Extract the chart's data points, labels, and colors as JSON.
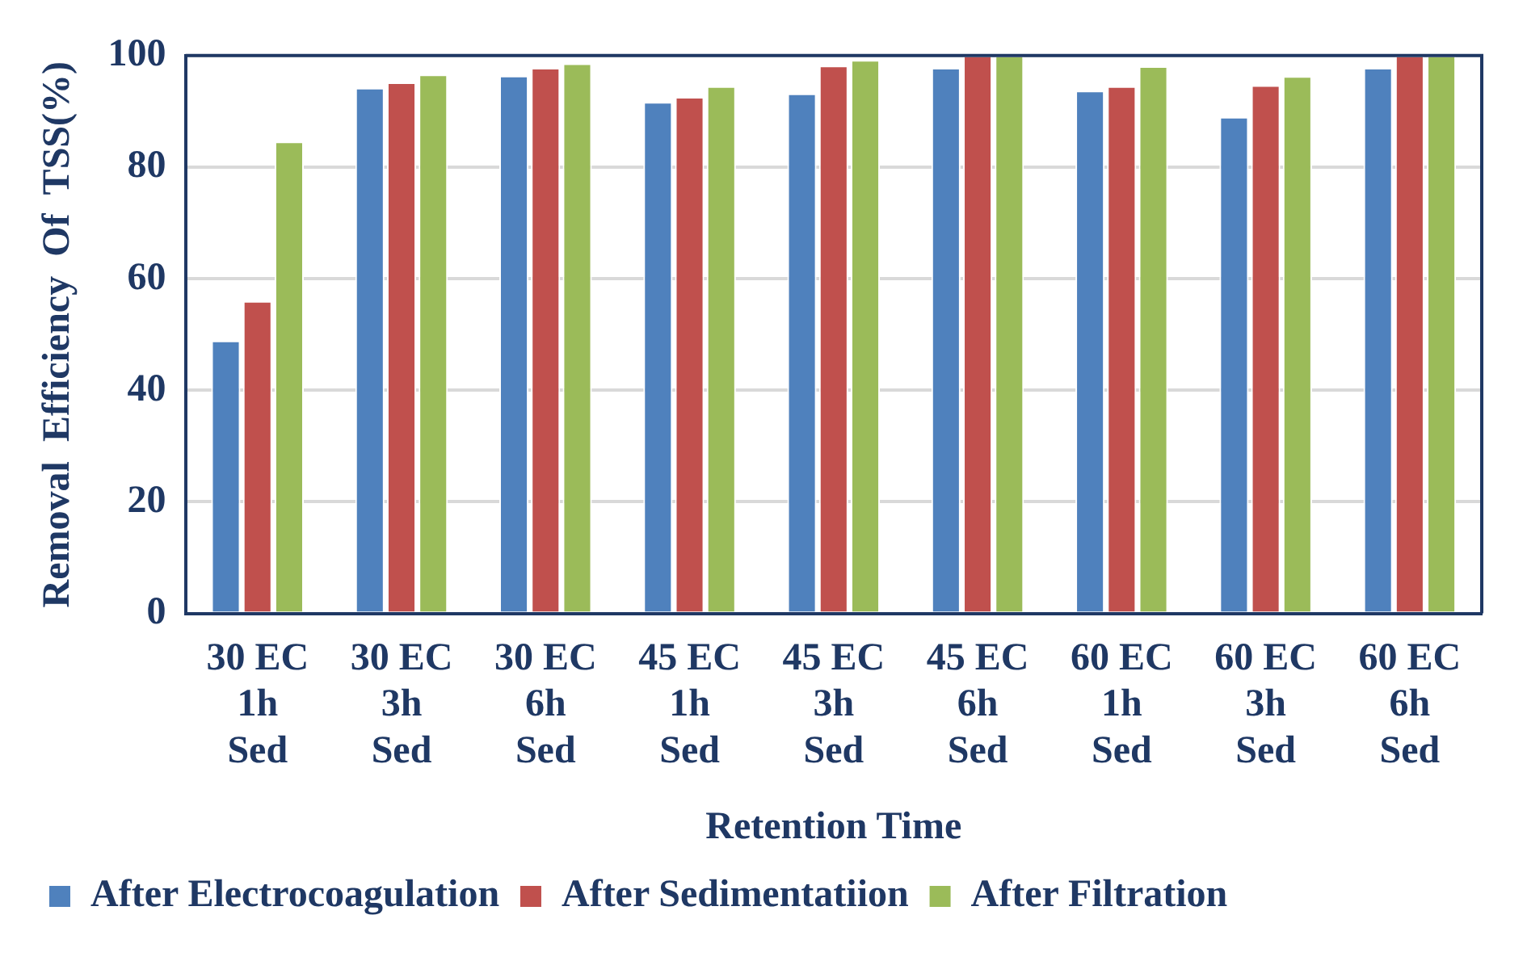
{
  "chart_data": {
    "type": "bar",
    "xlabel": "Retention Time",
    "ylabel": "Removal  Efficiency  Of  TSS(%)",
    "categories": [
      "30 EC 1h Sed",
      "30 EC 3h Sed",
      "30 EC 6h Sed",
      "45 EC 1h Sed",
      "45 EC 3h Sed",
      "45 EC 6h Sed",
      "60 EC 1h Sed",
      "60 EC 3h Sed",
      "60 EC 6h Sed"
    ],
    "series": [
      {
        "name": "After Electrocoagulation",
        "color": "#4f81bd",
        "values": [
          48.9,
          94.2,
          96.4,
          91.7,
          93.2,
          97.8,
          93.7,
          89.0,
          97.8
        ]
      },
      {
        "name": "After Sedimentatiion",
        "color": "#c0504d",
        "values": [
          56.0,
          95.2,
          97.8,
          92.6,
          98.2,
          100,
          94.5,
          94.7,
          100
        ]
      },
      {
        "name": "After Filtration",
        "color": "#9bbb59",
        "values": [
          84.6,
          96.6,
          98.6,
          94.5,
          99.2,
          100,
          98.1,
          96.3,
          100
        ]
      }
    ],
    "ylim": [
      0,
      100
    ],
    "yticks": [
      0,
      20,
      40,
      60,
      80,
      100
    ],
    "grid": "y",
    "legend": "bottom"
  }
}
